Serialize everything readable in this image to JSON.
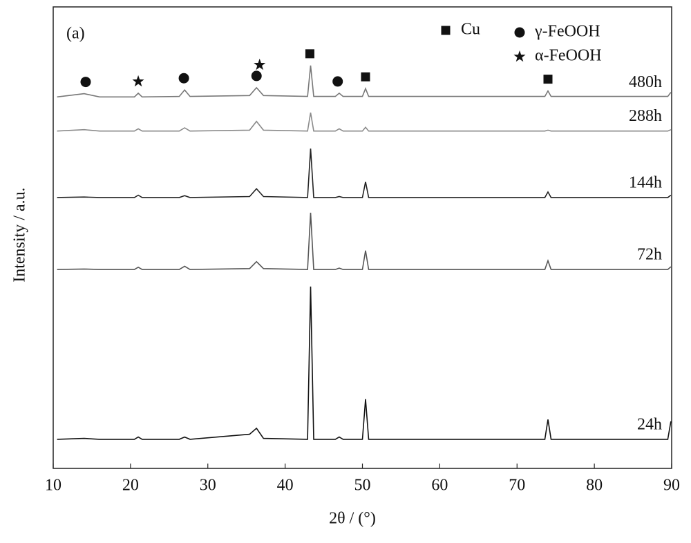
{
  "chart_data": {
    "type": "line",
    "panel_label": "(a)",
    "x_label": "2θ / (°)",
    "y_label": "Intensity / a.u.",
    "xlim": [
      10,
      90
    ],
    "xticks": [
      10,
      20,
      30,
      40,
      50,
      60,
      70,
      80,
      90
    ],
    "ylim": [
      0,
      100
    ],
    "x": [
      10.5,
      14,
      16,
      20.5,
      21,
      21.5,
      26.3,
      27,
      27.7,
      35.4,
      36.3,
      37.2,
      42.9,
      43.3,
      43.7,
      46.5,
      47,
      47.5,
      50,
      50.4,
      50.8,
      73.6,
      74,
      74.4,
      89.5,
      89.9
    ],
    "series": [
      {
        "name": "480h",
        "color": "#777777",
        "values": [
          80.5,
          81.2,
          80.5,
          80.5,
          81.3,
          80.5,
          80.6,
          82.0,
          80.6,
          80.8,
          82.5,
          80.8,
          80.6,
          87.3,
          80.6,
          80.6,
          81.3,
          80.6,
          80.6,
          82.3,
          80.6,
          80.6,
          81.8,
          80.6,
          80.6,
          81.5
        ]
      },
      {
        "name": "288h",
        "color": "#8a8a8a",
        "values": [
          73.1,
          73.4,
          73.1,
          73.1,
          73.6,
          73.1,
          73.1,
          73.8,
          73.1,
          73.3,
          75.2,
          73.3,
          73.1,
          77.1,
          73.1,
          73.1,
          73.6,
          73.1,
          73.1,
          73.9,
          73.1,
          73.1,
          73.3,
          73.1,
          73.1,
          73.4
        ]
      },
      {
        "name": "144h",
        "color": "#222222",
        "values": [
          58.7,
          58.8,
          58.7,
          58.7,
          59.2,
          58.7,
          58.7,
          59.1,
          58.7,
          58.9,
          60.6,
          58.9,
          58.7,
          69.3,
          58.7,
          58.7,
          58.9,
          58.7,
          58.7,
          62.1,
          58.7,
          58.7,
          59.9,
          58.7,
          58.7,
          59.2
        ]
      },
      {
        "name": "72h",
        "color": "#555555",
        "values": [
          43.1,
          43.2,
          43.1,
          43.1,
          43.6,
          43.1,
          43.1,
          43.8,
          43.1,
          43.3,
          44.8,
          43.3,
          43.1,
          55.4,
          43.1,
          43.1,
          43.4,
          43.1,
          43.1,
          47.2,
          43.1,
          43.1,
          45.0,
          43.1,
          43.1,
          43.7
        ]
      },
      {
        "name": "24h",
        "color": "#111111",
        "values": [
          6.3,
          6.5,
          6.3,
          6.3,
          6.8,
          6.3,
          6.3,
          6.8,
          6.3,
          7.4,
          8.7,
          6.5,
          6.3,
          39.4,
          6.3,
          6.3,
          6.8,
          6.3,
          6.3,
          15.0,
          6.3,
          6.3,
          10.6,
          6.3,
          6.3,
          10.2
        ]
      }
    ],
    "phases": [
      {
        "name": "Cu",
        "symbol": "square",
        "x": [
          43.2,
          50.4,
          74
        ]
      },
      {
        "name": "γ-FeOOH",
        "symbol": "circle",
        "x": [
          14.2,
          26.9,
          36.3,
          46.8
        ]
      },
      {
        "name": "α-FeOOH",
        "symbol": "star",
        "x": [
          21,
          36.7
        ]
      }
    ]
  }
}
